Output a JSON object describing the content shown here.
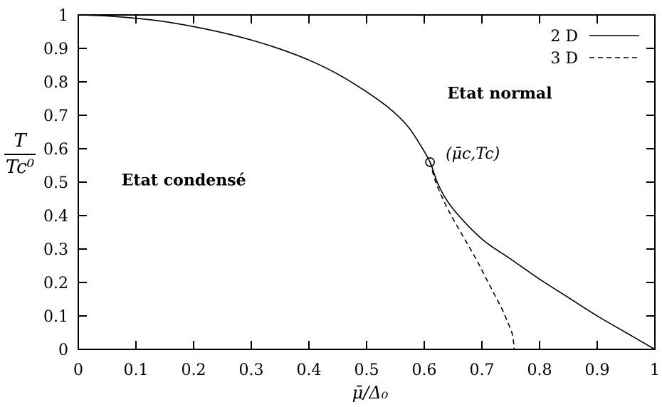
{
  "chart_data": {
    "type": "line",
    "xlabel": "μ̄/Δ₀",
    "ylabel_num": "T",
    "ylabel_den": "Tc⁰",
    "xlim": [
      0,
      1
    ],
    "ylim": [
      0,
      1
    ],
    "x_ticks": [
      "0",
      "0.1",
      "0.2",
      "0.3",
      "0.4",
      "0.5",
      "0.6",
      "0.7",
      "0.8",
      "0.9",
      "1"
    ],
    "y_ticks": [
      "0",
      "0.1",
      "0.2",
      "0.3",
      "0.4",
      "0.5",
      "0.6",
      "0.7",
      "0.8",
      "0.9",
      "1"
    ],
    "legend_placement": "top-right",
    "series": [
      {
        "name": "2 D",
        "style": "solid",
        "points": [
          [
            0,
            1.0
          ],
          [
            0.05,
            0.997
          ],
          [
            0.1,
            0.99
          ],
          [
            0.15,
            0.98
          ],
          [
            0.2,
            0.965
          ],
          [
            0.25,
            0.947
          ],
          [
            0.3,
            0.925
          ],
          [
            0.35,
            0.898
          ],
          [
            0.4,
            0.865
          ],
          [
            0.45,
            0.823
          ],
          [
            0.5,
            0.77
          ],
          [
            0.54,
            0.72
          ],
          [
            0.57,
            0.67
          ],
          [
            0.59,
            0.62
          ],
          [
            0.61,
            0.56
          ],
          [
            0.625,
            0.49
          ],
          [
            0.65,
            0.42
          ],
          [
            0.7,
            0.33
          ],
          [
            0.75,
            0.27
          ],
          [
            0.8,
            0.21
          ],
          [
            0.85,
            0.155
          ],
          [
            0.9,
            0.1
          ],
          [
            0.95,
            0.05
          ],
          [
            1.0,
            0.0
          ]
        ]
      },
      {
        "name": "3 D",
        "style": "dashed",
        "points": [
          [
            0.61,
            0.56
          ],
          [
            0.62,
            0.5
          ],
          [
            0.635,
            0.44
          ],
          [
            0.65,
            0.39
          ],
          [
            0.67,
            0.33
          ],
          [
            0.69,
            0.27
          ],
          [
            0.705,
            0.22
          ],
          [
            0.72,
            0.17
          ],
          [
            0.735,
            0.12
          ],
          [
            0.745,
            0.08
          ],
          [
            0.752,
            0.05
          ],
          [
            0.755,
            0.02
          ],
          [
            0.756,
            0.0
          ]
        ]
      }
    ],
    "critical_point": {
      "label": "(μ̄c,Tc)",
      "x": 0.61,
      "y": 0.56
    },
    "annotations": [
      {
        "text": "Etat normal",
        "x": 0.64,
        "y": 0.75
      },
      {
        "text": "Etat condensé",
        "x": 0.075,
        "y": 0.49
      }
    ]
  }
}
